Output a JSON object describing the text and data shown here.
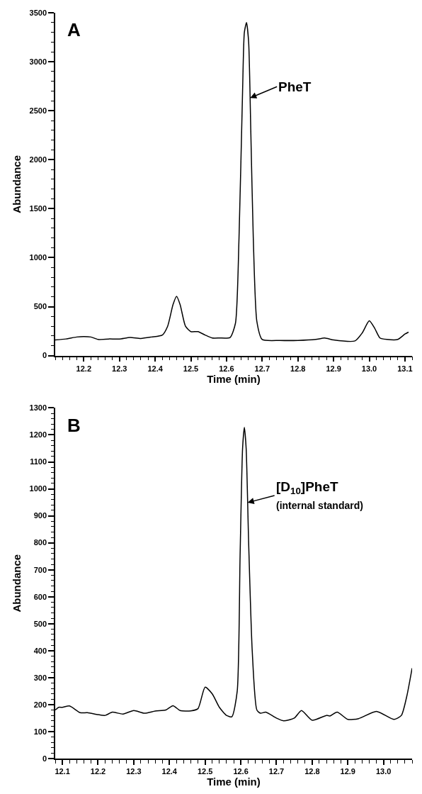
{
  "chart_data": [
    {
      "type": "line",
      "title": "A",
      "xlabel": "Time (min)",
      "ylabel": "Abundance",
      "xlim": [
        12.12,
        13.12
      ],
      "ylim": [
        0,
        3500
      ],
      "xticks": [
        12.2,
        12.3,
        12.4,
        12.5,
        12.6,
        12.7,
        12.8,
        12.9,
        {
          "value": 13,
          "label": "13.0"
        },
        13.1
      ],
      "yticks": [
        0,
        500,
        1000,
        1500,
        2000,
        2500,
        3000,
        3500
      ],
      "series": [
        {
          "color": "#000000",
          "x": [
            12.12,
            12.15,
            12.18,
            12.2,
            12.22,
            12.24,
            12.27,
            12.3,
            12.33,
            12.36,
            12.39,
            12.42,
            12.435,
            12.45,
            12.46,
            12.47,
            12.485,
            12.5,
            12.52,
            12.54,
            12.56,
            12.58,
            12.61,
            12.625,
            12.635,
            12.645,
            12.65,
            12.656,
            12.662,
            12.668,
            12.675,
            12.685,
            12.7,
            12.75,
            12.8,
            12.85,
            12.875,
            12.9,
            12.96,
            12.98,
            13.0,
            13.015,
            13.03,
            13.05,
            13.08,
            13.1,
            13.11
          ],
          "values": [
            160,
            170,
            190,
            195,
            190,
            165,
            170,
            170,
            185,
            175,
            190,
            210,
            300,
            520,
            605,
            520,
            300,
            245,
            245,
            210,
            180,
            180,
            185,
            330,
            1200,
            2700,
            3300,
            3400,
            3200,
            2300,
            1200,
            350,
            165,
            155,
            155,
            165,
            180,
            160,
            150,
            230,
            355,
            280,
            180,
            165,
            165,
            220,
            240
          ]
        }
      ],
      "annotations": [
        {
          "text": "PheT",
          "x": 12.666,
          "y": 2630
        }
      ],
      "marker": "none",
      "line_style": "solid"
    },
    {
      "type": "line",
      "title": "B",
      "xlabel": "Time (min)",
      "ylabel": "Abundance",
      "xlim": [
        12.08,
        13.08
      ],
      "ylim": [
        0,
        1300
      ],
      "xticks": [
        12.1,
        12.2,
        12.3,
        12.4,
        12.5,
        12.6,
        12.7,
        12.8,
        12.9,
        {
          "value": 13,
          "label": "13.0"
        }
      ],
      "yticks": [
        0,
        100,
        200,
        300,
        400,
        500,
        600,
        700,
        800,
        900,
        1000,
        1100,
        1200,
        1300
      ],
      "series": [
        {
          "color": "#000000",
          "x": [
            12.08,
            12.09,
            12.1,
            12.12,
            12.15,
            12.17,
            12.2,
            12.22,
            12.24,
            12.27,
            12.3,
            12.33,
            12.36,
            12.39,
            12.41,
            12.43,
            12.46,
            12.48,
            12.5,
            12.52,
            12.54,
            12.56,
            12.575,
            12.59,
            12.598,
            12.605,
            12.61,
            12.615,
            12.622,
            12.632,
            12.645,
            12.655,
            12.67,
            12.7,
            12.72,
            12.75,
            12.77,
            12.8,
            12.84,
            12.85,
            12.87,
            12.9,
            12.93,
            12.98,
            13.03,
            13.05,
            13.065,
            13.08
          ],
          "values": [
            180,
            190,
            190,
            195,
            170,
            170,
            163,
            160,
            172,
            165,
            178,
            168,
            176,
            180,
            196,
            178,
            177,
            185,
            265,
            240,
            190,
            160,
            155,
            250,
            750,
            1150,
            1228,
            1150,
            800,
            400,
            180,
            168,
            172,
            150,
            140,
            150,
            178,
            142,
            160,
            158,
            172,
            145,
            148,
            175,
            145,
            160,
            230,
            335
          ]
        }
      ],
      "annotations": [
        {
          "text": "[D$_{10}$]PheT\n(internal standard)",
          "x": 12.619,
          "y": 949
        }
      ],
      "marker": "none",
      "line_style": "solid"
    }
  ]
}
